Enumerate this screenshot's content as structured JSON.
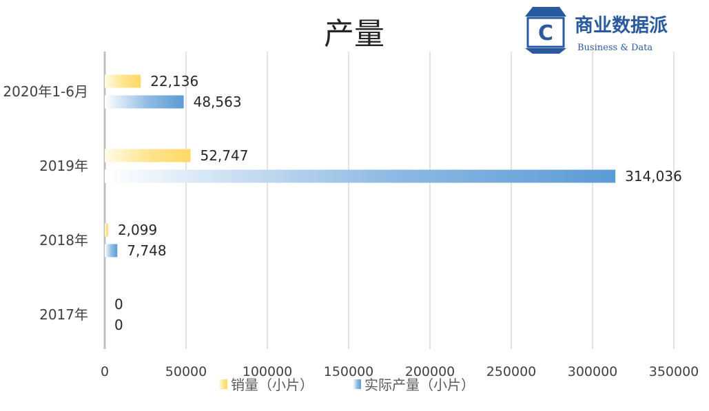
{
  "chart_data": {
    "type": "bar",
    "orientation": "horizontal",
    "title": "产量",
    "categories": [
      "2020年1-6月",
      "2019年",
      "2018年",
      "2017年"
    ],
    "series": [
      {
        "name": "销量（小片）",
        "values": [
          22136,
          52747,
          2099,
          0
        ],
        "labels": [
          "22,136",
          "52,747",
          "2,099",
          "0"
        ],
        "color": "#ffd966"
      },
      {
        "name": "实际产量（小片）",
        "values": [
          48563,
          314036,
          7748,
          0
        ],
        "labels": [
          "48,563",
          "314,036",
          "7,748",
          "0"
        ],
        "color": "#5b9bd5"
      }
    ],
    "xlim": [
      0,
      350000
    ],
    "xticks": [
      0,
      50000,
      100000,
      150000,
      200000,
      250000,
      300000,
      350000
    ],
    "xtick_labels": [
      "0",
      "50000",
      "100000",
      "150000",
      "200000",
      "250000",
      "300000",
      "350000"
    ],
    "grid": true,
    "legend_position": "bottom"
  },
  "logo": {
    "letter": "C",
    "name_cn": "商业数据派",
    "name_en": "Business & Data"
  }
}
